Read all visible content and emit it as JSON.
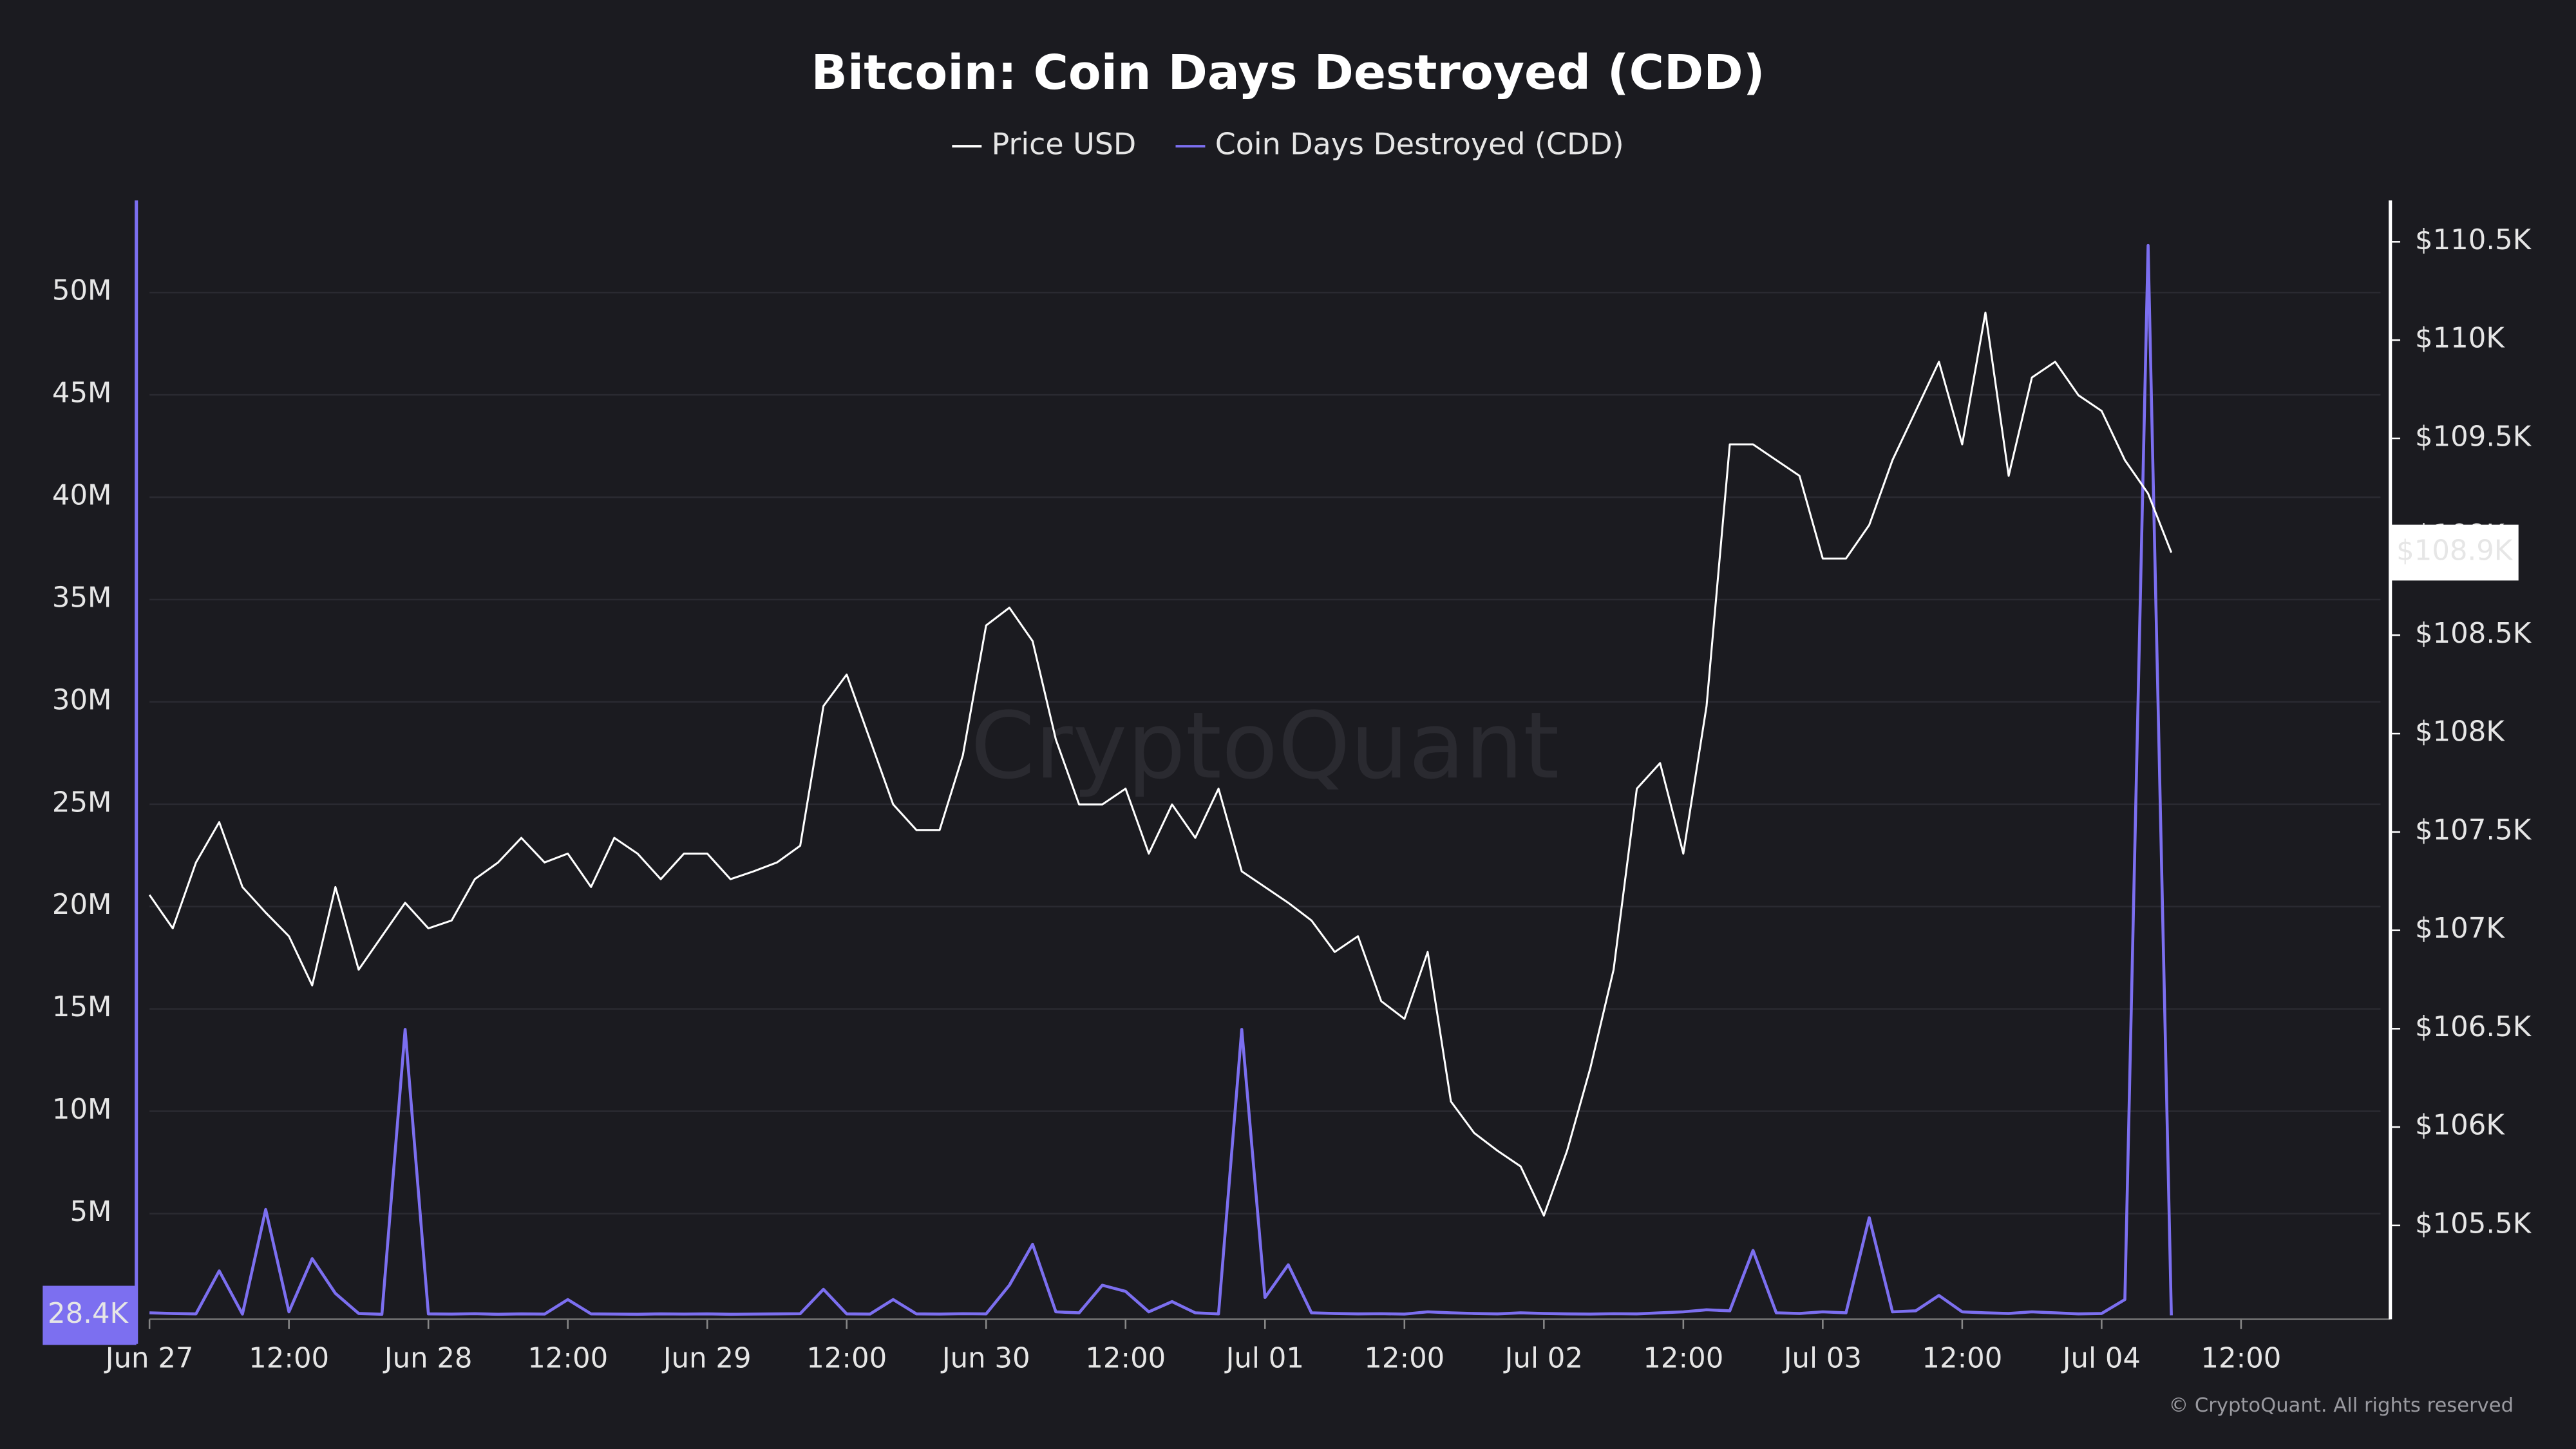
{
  "chart_data": {
    "type": "line",
    "title": "Bitcoin: Coin Days Destroyed (CDD)",
    "watermark": "CryptoQuant",
    "footer": "© CryptoQuant. All rights reserved",
    "x": [
      "Jun 27 00:00",
      "Jun 27 02:00",
      "Jun 27 04:00",
      "Jun 27 06:00",
      "Jun 27 08:00",
      "Jun 27 10:00",
      "Jun 27 12:00",
      "Jun 27 14:00",
      "Jun 27 16:00",
      "Jun 27 18:00",
      "Jun 27 20:00",
      "Jun 27 22:00",
      "Jun 28 00:00",
      "Jun 28 02:00",
      "Jun 28 04:00",
      "Jun 28 06:00",
      "Jun 28 08:00",
      "Jun 28 10:00",
      "Jun 28 12:00",
      "Jun 28 14:00",
      "Jun 28 16:00",
      "Jun 28 18:00",
      "Jun 28 20:00",
      "Jun 28 22:00",
      "Jun 29 00:00",
      "Jun 29 02:00",
      "Jun 29 04:00",
      "Jun 29 06:00",
      "Jun 29 08:00",
      "Jun 29 10:00",
      "Jun 29 12:00",
      "Jun 29 14:00",
      "Jun 29 16:00",
      "Jun 29 18:00",
      "Jun 29 20:00",
      "Jun 29 22:00",
      "Jun 30 00:00",
      "Jun 30 02:00",
      "Jun 30 04:00",
      "Jun 30 06:00",
      "Jun 30 08:00",
      "Jun 30 10:00",
      "Jun 30 12:00",
      "Jun 30 14:00",
      "Jun 30 16:00",
      "Jun 30 18:00",
      "Jun 30 20:00",
      "Jun 30 22:00",
      "Jul 01 00:00",
      "Jul 01 02:00",
      "Jul 01 04:00",
      "Jul 01 06:00",
      "Jul 01 08:00",
      "Jul 01 10:00",
      "Jul 01 12:00",
      "Jul 01 14:00",
      "Jul 01 16:00",
      "Jul 01 18:00",
      "Jul 01 20:00",
      "Jul 01 22:00",
      "Jul 02 00:00",
      "Jul 02 02:00",
      "Jul 02 04:00",
      "Jul 02 06:00",
      "Jul 02 08:00",
      "Jul 02 10:00",
      "Jul 02 12:00",
      "Jul 02 14:00",
      "Jul 02 16:00",
      "Jul 02 18:00",
      "Jul 02 20:00",
      "Jul 02 22:00",
      "Jul 03 00:00",
      "Jul 03 02:00",
      "Jul 03 04:00",
      "Jul 03 06:00",
      "Jul 03 08:00",
      "Jul 03 10:00",
      "Jul 03 12:00",
      "Jul 03 14:00",
      "Jul 03 16:00",
      "Jul 03 18:00",
      "Jul 03 20:00",
      "Jul 03 22:00",
      "Jul 04 00:00",
      "Jul 04 02:00",
      "Jul 04 04:00",
      "Jul 04 06:00"
    ],
    "xlim": [
      "Jun 27 00:00",
      "Jul 05 00:00"
    ],
    "xticks": [
      {
        "value": "Jun 27 00:00",
        "label": "Jun 27"
      },
      {
        "value": "Jun 27 12:00",
        "label": "12:00"
      },
      {
        "value": "Jun 28 00:00",
        "label": "Jun 28"
      },
      {
        "value": "Jun 28 12:00",
        "label": "12:00"
      },
      {
        "value": "Jun 29 00:00",
        "label": "Jun 29"
      },
      {
        "value": "Jun 29 12:00",
        "label": "12:00"
      },
      {
        "value": "Jun 30 00:00",
        "label": "Jun 30"
      },
      {
        "value": "Jun 30 12:00",
        "label": "12:00"
      },
      {
        "value": "Jul 01 00:00",
        "label": "Jul 01"
      },
      {
        "value": "Jul 01 12:00",
        "label": "12:00"
      },
      {
        "value": "Jul 02 00:00",
        "label": "Jul 02"
      },
      {
        "value": "Jul 02 12:00",
        "label": "12:00"
      },
      {
        "value": "Jul 03 00:00",
        "label": "Jul 03"
      },
      {
        "value": "Jul 03 12:00",
        "label": "12:00"
      },
      {
        "value": "Jul 04 00:00",
        "label": "Jul 04"
      },
      {
        "value": "Jul 04 12:00",
        "label": "12:00"
      }
    ],
    "ylim": [
      0,
      54500000
    ],
    "yticks": [
      {
        "value": 5000000,
        "label": "5M"
      },
      {
        "value": 10000000,
        "label": "10M"
      },
      {
        "value": 15000000,
        "label": "15M"
      },
      {
        "value": 20000000,
        "label": "20M"
      },
      {
        "value": 25000000,
        "label": "25M"
      },
      {
        "value": 30000000,
        "label": "30M"
      },
      {
        "value": 35000000,
        "label": "35M"
      },
      {
        "value": 40000000,
        "label": "40M"
      },
      {
        "value": 45000000,
        "label": "45M"
      },
      {
        "value": 50000000,
        "label": "50M"
      }
    ],
    "y2lim": [
      105040,
      110710
    ],
    "y2ticks": [
      {
        "value": 105500,
        "label": "$105.5K"
      },
      {
        "value": 106000,
        "label": "$106K"
      },
      {
        "value": 106500,
        "label": "$106.5K"
      },
      {
        "value": 107000,
        "label": "$107K"
      },
      {
        "value": 107500,
        "label": "$107.5K"
      },
      {
        "value": 108000,
        "label": "$108K"
      },
      {
        "value": 108500,
        "label": "$108.5K"
      },
      {
        "value": 109000,
        "label": "$109K"
      },
      {
        "value": 109500,
        "label": "$109.5K"
      },
      {
        "value": 110000,
        "label": "$110K"
      },
      {
        "value": 110500,
        "label": "$110.5K"
      }
    ],
    "grid": true,
    "legend": "top",
    "series": [
      {
        "name": "Price USD",
        "color": "#ffffff",
        "axis": "y2",
        "last_value_label": "$108.9K",
        "values": [
          107180,
          107010,
          107345,
          107550,
          107220,
          107090,
          106970,
          106720,
          107220,
          106800,
          106970,
          107140,
          107010,
          107050,
          107260,
          107345,
          107470,
          107345,
          107390,
          107220,
          107470,
          107390,
          107260,
          107390,
          107390,
          107260,
          107300,
          107345,
          107430,
          108140,
          108300,
          107970,
          107640,
          107510,
          107510,
          107890,
          108550,
          108640,
          108470,
          107970,
          107640,
          107640,
          107720,
          107390,
          107640,
          107470,
          107720,
          107300,
          107220,
          107140,
          107050,
          106890,
          106970,
          106640,
          106550,
          106890,
          106130,
          105970,
          105880,
          105800,
          105550,
          105880,
          106300,
          106800,
          107720,
          107850,
          107390,
          108140,
          109470,
          109470,
          109390,
          109310,
          108890,
          108890,
          109060,
          109390,
          109640,
          109890,
          109470,
          110140,
          109310,
          109810,
          109890,
          109720,
          109640,
          109390,
          109220,
          108920
        ]
      },
      {
        "name": "Coin Days Destroyed (CDD)",
        "color": "#7c6ff0",
        "axis": "y",
        "last_value_label": "28.4K",
        "values": [
          150000,
          120000,
          100000,
          2200000,
          90000,
          5200000,
          200000,
          2800000,
          1100000,
          120000,
          80000,
          14000000,
          100000,
          90000,
          110000,
          80000,
          100000,
          90000,
          800000,
          100000,
          90000,
          80000,
          100000,
          90000,
          100000,
          80000,
          90000,
          100000,
          110000,
          1300000,
          100000,
          90000,
          800000,
          100000,
          90000,
          110000,
          100000,
          1500000,
          3500000,
          200000,
          150000,
          1500000,
          1200000,
          200000,
          700000,
          150000,
          100000,
          14000000,
          900000,
          2500000,
          150000,
          120000,
          100000,
          110000,
          90000,
          200000,
          150000,
          120000,
          100000,
          150000,
          120000,
          100000,
          90000,
          110000,
          100000,
          150000,
          200000,
          300000,
          250000,
          3200000,
          150000,
          120000,
          200000,
          150000,
          4800000,
          200000,
          250000,
          1000000,
          200000,
          150000,
          120000,
          200000,
          150000,
          100000,
          120000,
          800000,
          52300000,
          28400
        ]
      }
    ]
  }
}
